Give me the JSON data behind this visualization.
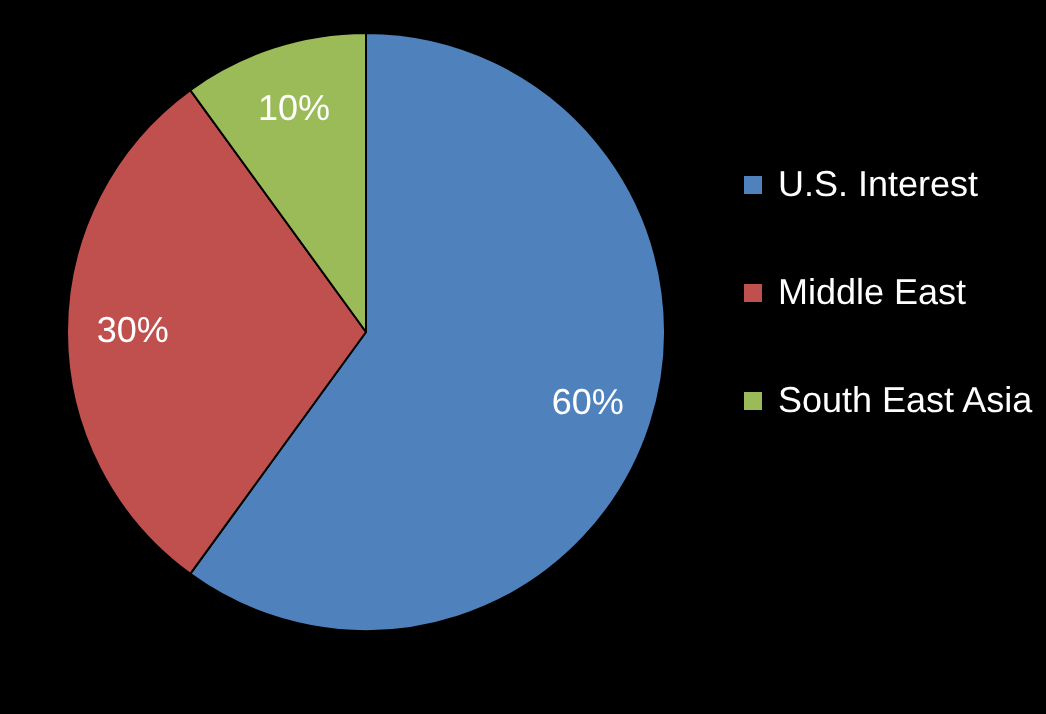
{
  "chart_data": {
    "type": "pie",
    "categories": [
      "U.S. Interest",
      "Middle East",
      "South East Asia"
    ],
    "values": [
      60,
      30,
      10
    ],
    "colors": [
      "#4f81bd",
      "#c0504d",
      "#9bbb59"
    ],
    "value_labels": [
      "60%",
      "30%",
      "10%"
    ],
    "legend": "right"
  }
}
